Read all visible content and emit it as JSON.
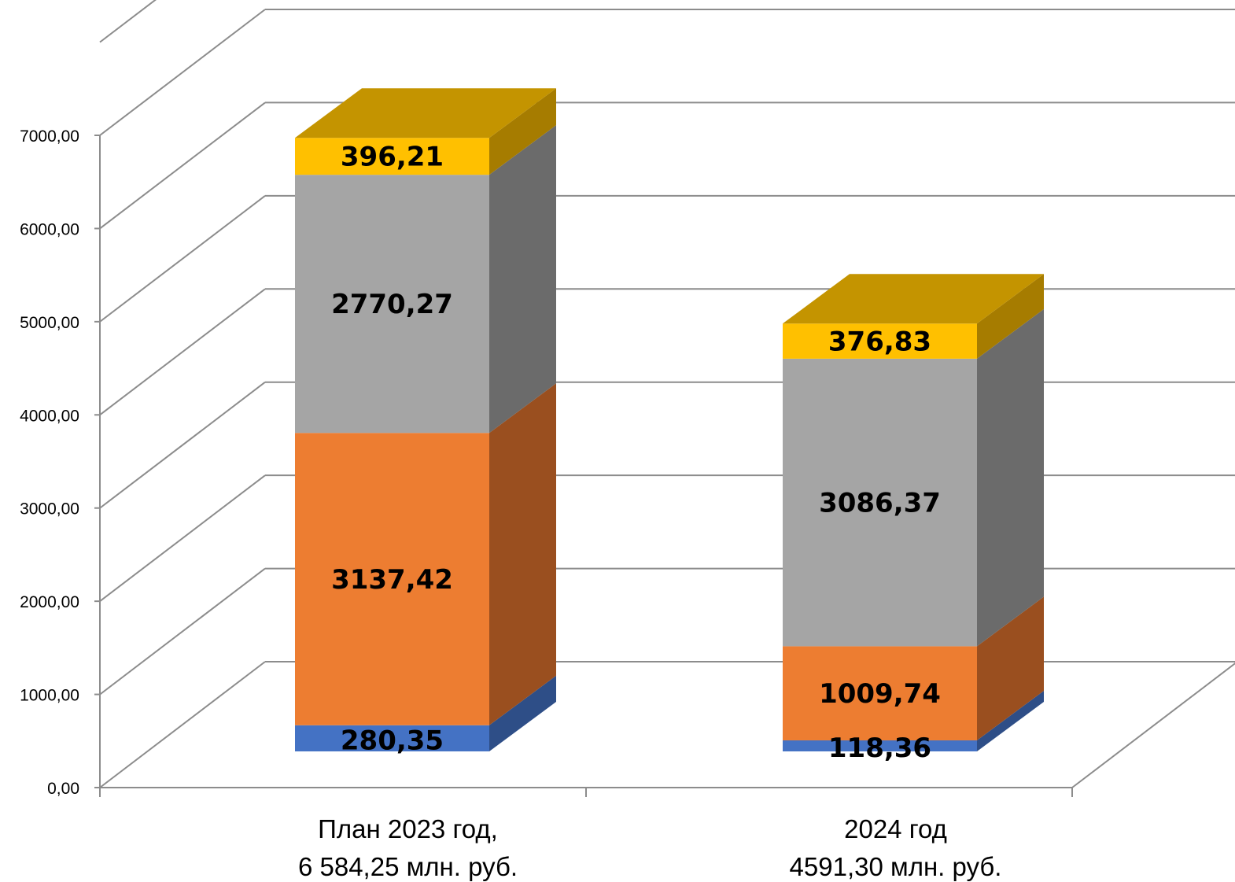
{
  "chart_data": {
    "type": "bar",
    "stacked": true,
    "three_d": true,
    "categories": [
      [
        "План 2023 год,",
        "6 584,25 млн. руб."
      ],
      [
        "2024 год",
        "4591,30 млн. руб."
      ]
    ],
    "series": [
      {
        "color": "#4472C4",
        "side_color": "#2E4E87",
        "top_color": "#3A63AE",
        "values": [
          280.35,
          118.36
        ],
        "labels": [
          "280,35",
          "118,36"
        ]
      },
      {
        "color": "#ED7D31",
        "side_color": "#9A4F1F",
        "top_color": "#C46427",
        "values": [
          3137.42,
          1009.74
        ],
        "labels": [
          "3137,42",
          "1009,74"
        ]
      },
      {
        "color": "#A5A5A5",
        "side_color": "#6B6B6B",
        "top_color": "#8C8C8C",
        "values": [
          2770.27,
          3086.37
        ],
        "labels": [
          "2770,27",
          "3086,37"
        ]
      },
      {
        "color": "#FFC000",
        "side_color": "#A67C00",
        "top_color": "#C49400",
        "values": [
          396.21,
          376.83
        ],
        "labels": [
          "396,21",
          "376,83"
        ]
      }
    ],
    "ylim": [
      0,
      7000
    ],
    "yticks": [
      "0,00",
      "1000,00",
      "2000,00",
      "3000,00",
      "4000,00",
      "5000,00",
      "6000,00",
      "7000,00"
    ],
    "grid": true,
    "legend": false,
    "xlabel": "",
    "ylabel": "",
    "title": ""
  }
}
